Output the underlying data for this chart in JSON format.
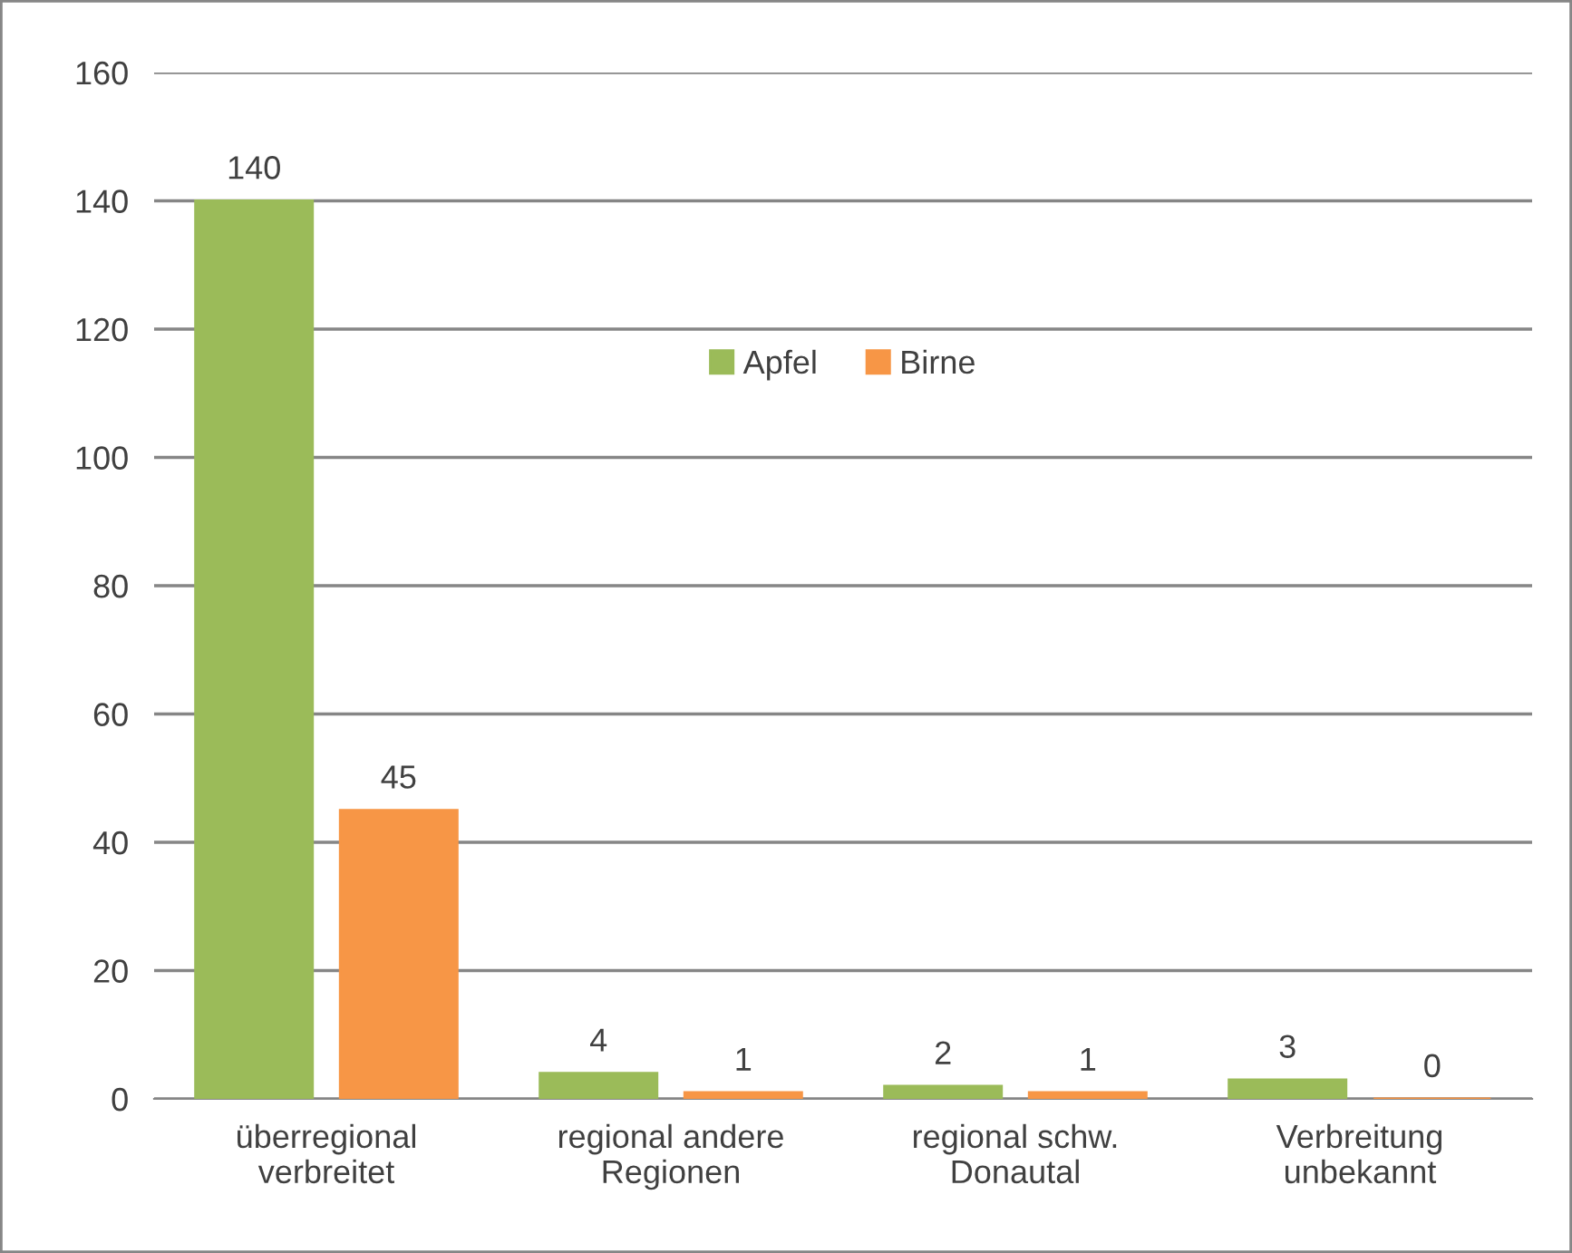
{
  "chart_data": {
    "type": "bar",
    "categories": [
      "überregional\nverbreitet",
      "regional andere\nRegionen",
      "regional schw.\nDonautal",
      "Verbreitung\nunbekannt"
    ],
    "series": [
      {
        "name": "Apfel",
        "color": "#9bbb59",
        "values": [
          140,
          4,
          2,
          3
        ]
      },
      {
        "name": "Birne",
        "color": "#f79646",
        "values": [
          45,
          1,
          1,
          0
        ]
      }
    ],
    "ylim": [
      0,
      160
    ],
    "yticks": [
      0,
      20,
      40,
      60,
      80,
      100,
      120,
      140,
      160
    ],
    "grid": "y",
    "legend": "top center",
    "data_labels": true
  }
}
